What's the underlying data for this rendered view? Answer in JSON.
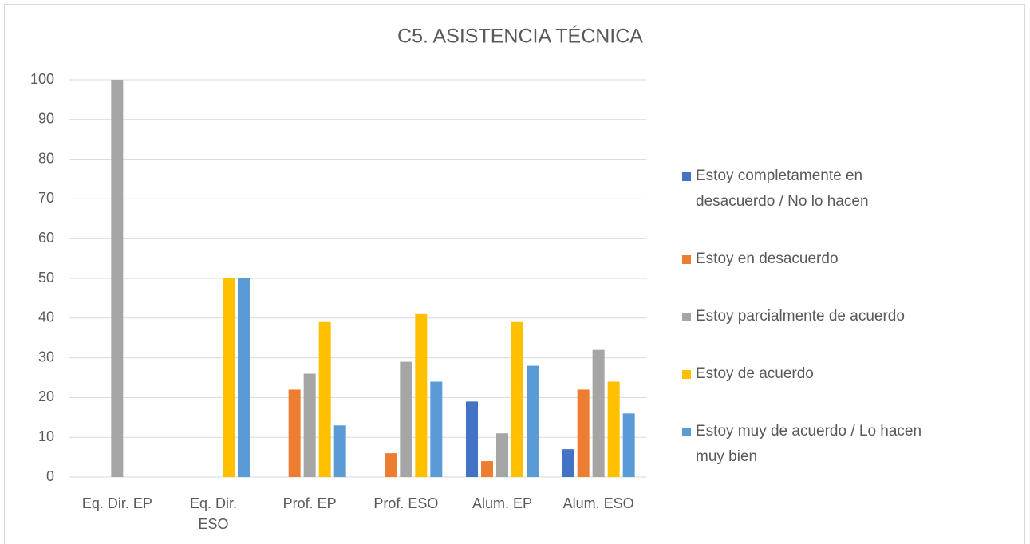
{
  "chart_data": {
    "type": "bar",
    "title": "C5. ASISTENCIA TÉCNICA",
    "categories": [
      "Eq. Dir. EP",
      "Eq. Dir. ESO",
      "Prof. EP",
      "Prof. ESO",
      "Alum. EP",
      "Alum. ESO"
    ],
    "series": [
      {
        "name": "Estoy completamente en desacuerdo / No lo hacen",
        "color": "#4472c4",
        "values": [
          0,
          0,
          0,
          0,
          19,
          7
        ]
      },
      {
        "name": "Estoy en desacuerdo",
        "color": "#ed7d31",
        "values": [
          0,
          0,
          22,
          6,
          4,
          22
        ]
      },
      {
        "name": "Estoy parcialmente de acuerdo",
        "color": "#a5a5a5",
        "values": [
          100,
          0,
          26,
          29,
          11,
          32
        ]
      },
      {
        "name": "Estoy de acuerdo",
        "color": "#ffc000",
        "values": [
          0,
          50,
          39,
          41,
          39,
          24
        ]
      },
      {
        "name": "Estoy muy de acuerdo / Lo hacen muy bien",
        "color": "#5b9bd5",
        "values": [
          0,
          50,
          13,
          24,
          28,
          16
        ]
      }
    ],
    "ylim": [
      0,
      100
    ],
    "yticks": [
      0,
      10,
      20,
      30,
      40,
      50,
      60,
      70,
      80,
      90,
      100
    ],
    "grid": true,
    "legend": "right"
  }
}
